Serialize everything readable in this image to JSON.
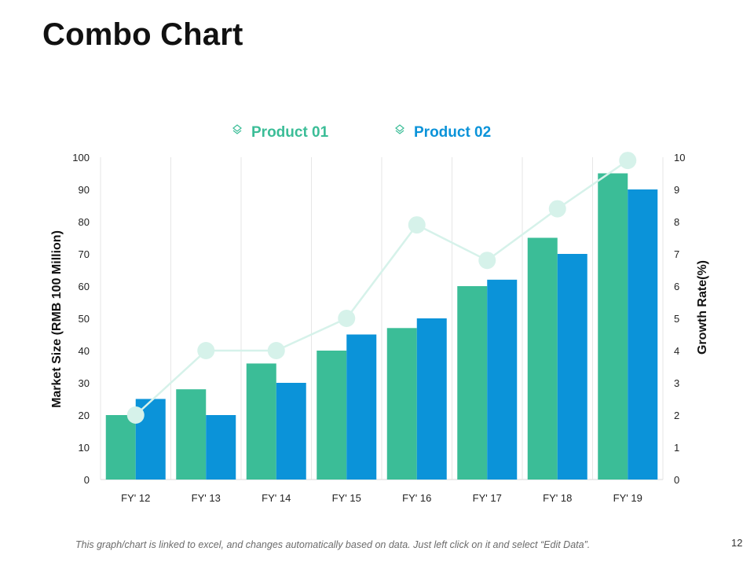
{
  "slide": {
    "title": "Combo Chart",
    "footnote": "This graph/chart is linked to excel, and changes automatically based on data. Just left click on it and select “Edit Data”.",
    "page_number": "12"
  },
  "colors": {
    "product1": "#3bbd97",
    "product2": "#0b93d9",
    "growth_line": "#d6f2ea",
    "gridline": "#e6e6e6",
    "text": "#222222"
  },
  "chart_data": {
    "type": "bar",
    "title": "",
    "categories": [
      "FY' 12",
      "FY' 13",
      "FY' 14",
      "FY' 15",
      "FY' 16",
      "FY' 17",
      "FY' 18",
      "FY' 19"
    ],
    "series": [
      {
        "name": "Product 01",
        "type": "bar",
        "axis": "left",
        "values": [
          20,
          28,
          36,
          40,
          47,
          60,
          75,
          95
        ]
      },
      {
        "name": "Product 02",
        "type": "bar",
        "axis": "left",
        "values": [
          25,
          20,
          30,
          45,
          50,
          62,
          70,
          90
        ]
      },
      {
        "name": "Growth Rate",
        "type": "line",
        "axis": "right",
        "values": [
          2,
          4,
          4,
          5,
          7.9,
          6.8,
          8.4,
          9.9
        ]
      }
    ],
    "ylabel": "Market Size (RMB 100 Million)",
    "ylim": [
      0,
      100
    ],
    "yticks": [
      "0",
      "10",
      "20",
      "30",
      "40",
      "50",
      "60",
      "70",
      "80",
      "90",
      "100"
    ],
    "y2label": "Growth Rate(%)",
    "y2lim": [
      0,
      10
    ],
    "y2ticks": [
      "0",
      "1",
      "2",
      "3",
      "4",
      "5",
      "6",
      "7",
      "8",
      "9",
      "10"
    ],
    "legend": {
      "position": "top-center",
      "entries": [
        "Product 01",
        "Product 02"
      ]
    },
    "grid": {
      "vertical": true,
      "horizontal": false
    }
  }
}
